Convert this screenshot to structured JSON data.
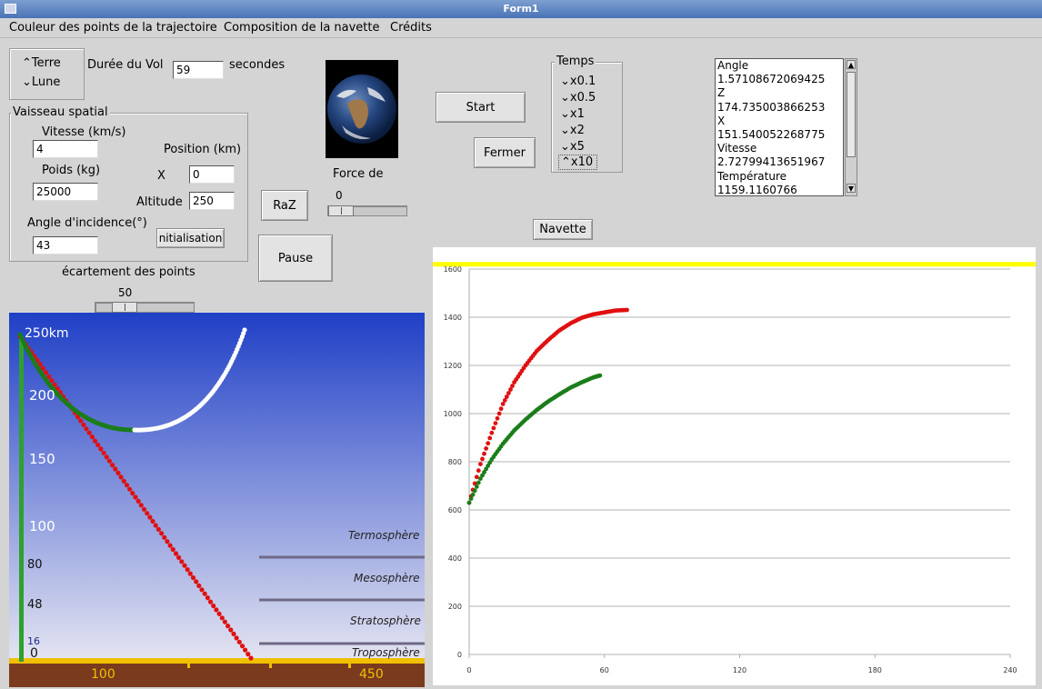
{
  "window": {
    "title": "Form1"
  },
  "menu": [
    "Couleur des points de la trajectoire",
    "Composition de la navette",
    "Crédits"
  ],
  "planet": {
    "options": [
      "Terre",
      "Lune"
    ],
    "selected": "Terre"
  },
  "flight": {
    "label": "Durée du Vol",
    "value": "59",
    "unit": "secondes"
  },
  "vessel": {
    "group_title": "Vaisseau spatial",
    "speed_label": "Vitesse (km/s)",
    "speed_value": "4",
    "weight_label": "Poids (kg)",
    "weight_value": "25000",
    "angle_label": "Angle d'incidence(°)",
    "angle_value": "43",
    "position_label": "Position (km)",
    "x_label": "X",
    "x_value": "0",
    "altitude_label": "Altitude",
    "altitude_value": "250",
    "init_button": "nitialisation"
  },
  "buttons": {
    "raz": "RaZ",
    "pause": "Pause",
    "start": "Start",
    "fermer": "Fermer",
    "navette": "Navette"
  },
  "force": {
    "label": "Force de",
    "value": "0"
  },
  "spacing": {
    "label": "écartement des points",
    "value": "50"
  },
  "time": {
    "group_title": "Temps",
    "options": [
      "x0.1",
      "x0.5",
      "x1",
      "x2",
      "x5",
      "x10"
    ],
    "selected": "x10"
  },
  "readout": [
    "Angle",
    "1.57108672069425",
    "Z",
    "174.735003866253",
    "X",
    "151.540052268775",
    "Vitesse",
    "2.72799413651967",
    "Température",
    "1159.1160766"
  ],
  "scene": {
    "altitudes": [
      "250km",
      "200",
      "150",
      "100",
      "80",
      "48",
      "16",
      "0"
    ],
    "layers": [
      "Termosphère",
      "Mesosphère",
      "Stratosphère",
      "Troposphère"
    ],
    "ground_ticks": [
      "100",
      "450"
    ],
    "colors": {
      "sky_top": "#1f3fc6",
      "sky_bottom": "#e6e6f2",
      "ground": "#7a3a1e",
      "trajectory_red": "#e01010",
      "trajectory_green": "#1a7d1a",
      "trajectory_white": "#ffffff",
      "altitude_bar": "#2ea02e"
    }
  },
  "chart_data": {
    "type": "scatter",
    "x_ticks": [
      "0",
      "60",
      "120",
      "180",
      "240"
    ],
    "y_ticks": [
      "0",
      "200",
      "400",
      "600",
      "800",
      "1000",
      "1200",
      "1400",
      "1600"
    ],
    "xlim": [
      0,
      240
    ],
    "ylim": [
      0,
      1600
    ],
    "reference_line": {
      "y": 1620,
      "color": "#ffff00"
    },
    "series": [
      {
        "color": "#e01010",
        "x": [
          0,
          5,
          10,
          15,
          20,
          25,
          30,
          35,
          40,
          45,
          50,
          55,
          60,
          65,
          70
        ],
        "y": [
          630,
          790,
          920,
          1040,
          1130,
          1200,
          1260,
          1305,
          1345,
          1375,
          1398,
          1412,
          1420,
          1428,
          1430
        ]
      },
      {
        "color": "#1a7d1a",
        "x": [
          0,
          5,
          10,
          15,
          20,
          25,
          30,
          35,
          40,
          45,
          50,
          55,
          58
        ],
        "y": [
          630,
          730,
          810,
          875,
          930,
          975,
          1015,
          1050,
          1080,
          1108,
          1130,
          1150,
          1158
        ]
      }
    ]
  }
}
